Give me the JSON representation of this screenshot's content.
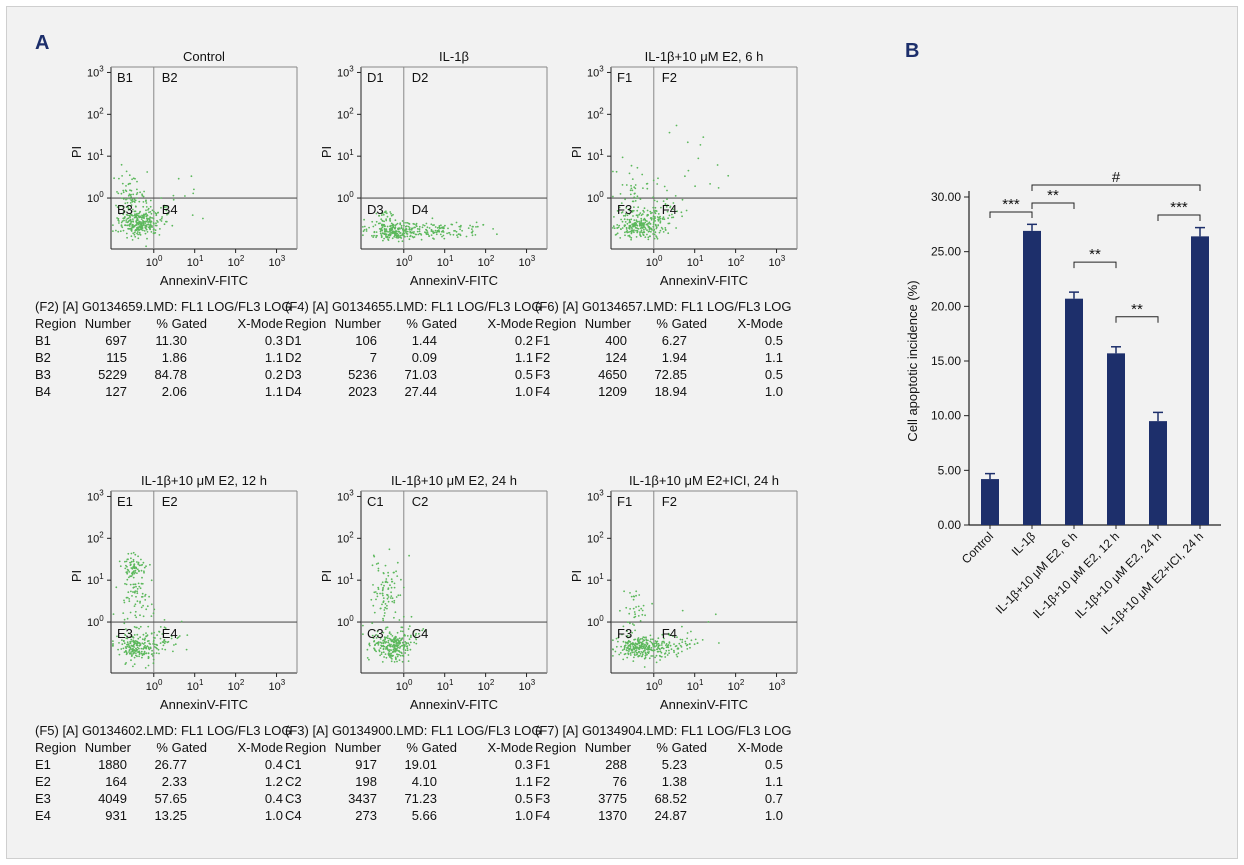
{
  "panel_a_label": "A",
  "panel_b_label": "B",
  "plots": [
    {
      "title": "Control",
      "quadrants": [
        "B1",
        "B2",
        "B3",
        "B4"
      ],
      "xlabel": "AnnexinV-FITC",
      "ylabel": "PI",
      "pattern": "control",
      "table_header": "(F2) [A] G0134659.LMD: FL1 LOG/FL3 LOG",
      "columns": [
        "Region",
        "Number",
        "% Gated",
        "X-Mode"
      ],
      "rows": [
        [
          "B1",
          "697",
          "11.30",
          "0.3"
        ],
        [
          "B2",
          "115",
          "1.86",
          "1.1"
        ],
        [
          "B3",
          "5229",
          "84.78",
          "0.2"
        ],
        [
          "B4",
          "127",
          "2.06",
          "1.1"
        ]
      ]
    },
    {
      "title": "IL-1β",
      "quadrants": [
        "D1",
        "D2",
        "D3",
        "D4"
      ],
      "xlabel": "AnnexinV-FITC",
      "ylabel": "PI",
      "pattern": "il1b",
      "table_header": "(F4) [A] G0134655.LMD: FL1 LOG/FL3 LOG",
      "columns": [
        "Region",
        "Number",
        "% Gated",
        "X-Mode"
      ],
      "rows": [
        [
          "D1",
          "106",
          "1.44",
          "0.2"
        ],
        [
          "D2",
          "7",
          "0.09",
          "1.1"
        ],
        [
          "D3",
          "5236",
          "71.03",
          "0.5"
        ],
        [
          "D4",
          "2023",
          "27.44",
          "1.0"
        ]
      ]
    },
    {
      "title": "IL-1β+10 μM E2, 6 h",
      "quadrants": [
        "F1",
        "F2",
        "F3",
        "F4"
      ],
      "xlabel": "AnnexinV-FITC",
      "ylabel": "PI",
      "pattern": "e2_6h",
      "table_header": "(F6) [A] G0134657.LMD: FL1 LOG/FL3 LOG",
      "columns": [
        "Region",
        "Number",
        "% Gated",
        "X-Mode"
      ],
      "rows": [
        [
          "F1",
          "400",
          "6.27",
          "0.5"
        ],
        [
          "F2",
          "124",
          "1.94",
          "1.1"
        ],
        [
          "F3",
          "4650",
          "72.85",
          "0.5"
        ],
        [
          "F4",
          "1209",
          "18.94",
          "1.0"
        ]
      ]
    },
    {
      "title": "IL-1β+10 μM E2, 12 h",
      "quadrants": [
        "E1",
        "E2",
        "E3",
        "E4"
      ],
      "xlabel": "AnnexinV-FITC",
      "ylabel": "PI",
      "pattern": "e2_12h",
      "table_header": "(F5) [A] G0134602.LMD: FL1 LOG/FL3 LOG",
      "columns": [
        "Region",
        "Number",
        "% Gated",
        "X-Mode"
      ],
      "rows": [
        [
          "E1",
          "1880",
          "26.77",
          "0.4"
        ],
        [
          "E2",
          "164",
          "2.33",
          "1.2"
        ],
        [
          "E3",
          "4049",
          "57.65",
          "0.4"
        ],
        [
          "E4",
          "931",
          "13.25",
          "1.0"
        ]
      ]
    },
    {
      "title": "IL-1β+10 μM E2, 24 h",
      "quadrants": [
        "C1",
        "C2",
        "C3",
        "C4"
      ],
      "xlabel": "AnnexinV-FITC",
      "ylabel": "PI",
      "pattern": "e2_24h",
      "table_header": "(F3) [A] G0134900.LMD: FL1 LOG/FL3 LOG",
      "columns": [
        "Region",
        "Number",
        "% Gated",
        "X-Mode"
      ],
      "rows": [
        [
          "C1",
          "917",
          "19.01",
          "0.3"
        ],
        [
          "C2",
          "198",
          "4.10",
          "1.1"
        ],
        [
          "C3",
          "3437",
          "71.23",
          "0.5"
        ],
        [
          "C4",
          "273",
          "5.66",
          "1.0"
        ]
      ]
    },
    {
      "title": "IL-1β+10 μM E2+ICI, 24 h",
      "quadrants": [
        "F1",
        "F2",
        "F3",
        "F4"
      ],
      "xlabel": "AnnexinV-FITC",
      "ylabel": "PI",
      "pattern": "e2_ici",
      "table_header": "(F7) [A] G0134904.LMD: FL1 LOG/FL3 LOG",
      "columns": [
        "Region",
        "Number",
        "% Gated",
        "X-Mode"
      ],
      "rows": [
        [
          "F1",
          "288",
          "5.23",
          "0.5"
        ],
        [
          "F2",
          "76",
          "1.38",
          "1.1"
        ],
        [
          "F3",
          "3775",
          "68.52",
          "0.7"
        ],
        [
          "F4",
          "1370",
          "24.87",
          "1.0"
        ]
      ]
    }
  ],
  "log_ticks": {
    "bases": [
      "10",
      "10",
      "10",
      "10"
    ],
    "exponents": [
      "0",
      "1",
      "2",
      "3"
    ]
  },
  "dot_color": "#5cb85c",
  "bar_color": "#1d2f6b",
  "chart_data": {
    "type": "bar",
    "categories": [
      "Control",
      "IL-1β",
      "IL-1β+10 μM E2, 6 h",
      "IL-1β+10 μM E2, 12 h",
      "IL-1β+10 μM E2, 24 h",
      "IL-1β+10 μM E2+ICI, 24 h"
    ],
    "values": [
      4.2,
      26.9,
      20.7,
      15.7,
      9.5,
      26.4
    ],
    "errors": [
      0.5,
      0.6,
      0.6,
      0.6,
      0.8,
      0.8
    ],
    "ylabel": "Cell apoptotic incidence (%)",
    "ylim": [
      0,
      30
    ],
    "yticks": [
      "0.00",
      "5.00",
      "10.00",
      "15.00",
      "20.00",
      "25.00",
      "30.00"
    ],
    "significance": [
      {
        "from": 0,
        "to": 1,
        "label": "***"
      },
      {
        "from": 1,
        "to": 2,
        "label": "**"
      },
      {
        "from": 1,
        "to": 5,
        "label": "#"
      },
      {
        "from": 2,
        "to": 3,
        "label": "**"
      },
      {
        "from": 3,
        "to": 4,
        "label": "**"
      },
      {
        "from": 4,
        "to": 5,
        "label": "***"
      }
    ]
  }
}
